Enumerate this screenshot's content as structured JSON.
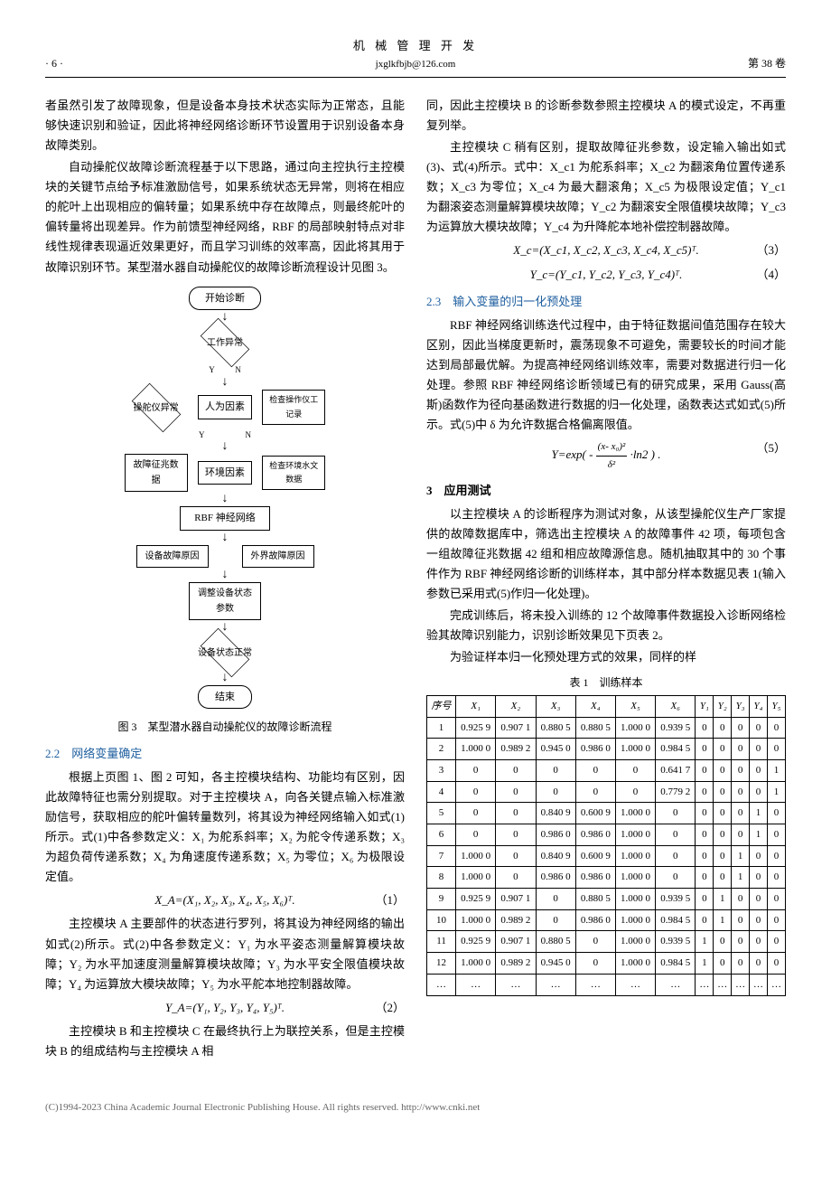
{
  "header": {
    "page_num": "· 6 ·",
    "journal": "机 械 管 理 开 发",
    "email": "jxglkfbjb@126.com",
    "volume": "第 38 卷"
  },
  "col1": {
    "p1": "者虽然引发了故障现象，但是设备本身技术状态实际为正常态，且能够快速识别和验证，因此将神经网络诊断环节设置用于识别设备本身故障类别。",
    "p2": "自动操舵仪故障诊断流程基于以下思路，通过向主控执行主控模块的关键节点给予标准激励信号，如果系统状态无异常，则将在相应的舵叶上出现相应的偏转量；如果系统中存在故障点，则最终舵叶的偏转量将出现差异。作为前馈型神经网络，RBF 的局部映射特点对非线性规律表现逼近效果更好，而且学习训练的效率高，因此将其用于故障识别环节。某型潜水器自动操舵仪的故障诊断流程设计见图 3。",
    "fig3_caption": "图 3　某型潜水器自动操舵仪的故障诊断流程",
    "sec22": "2.2　网络变量确定",
    "p3": "根据上页图 1、图 2 可知，各主控模块结构、功能均有区别，因此故障特征也需分别提取。对于主控模块 A，向各关键点输入标准激励信号，获取相应的舵叶偏转量数列，将其设为神经网络输入如式(1)所示。式(1)中各参数定义：X₁ 为舵系斜率；X₂ 为舵令传递系数；X₃ 为超负荷传递系数；X₄ 为角速度传递系数；X₅ 为零位；X₆ 为极限设定值。",
    "eq1": "X_A=(X₁, X₂, X₃, X₄, X₅, X₆)ᵀ.",
    "eq1_num": "（1）",
    "p4": "主控模块 A 主要部件的状态进行罗列，将其设为神经网络的输出如式(2)所示。式(2)中各参数定义：Y₁ 为水平姿态测量解算模块故障；Y₂ 为水平加速度测量解算模块故障；Y₃ 为水平安全限值模块故障；Y₄ 为运算放大模块故障；Y₅ 为水平舵本地控制器故障。",
    "eq2": "Y_A=(Y₁, Y₂, Y₃, Y₄, Y₅)ᵀ.",
    "eq2_num": "（2）",
    "p5": "主控模块 B 和主控模块 C 在最终执行上为联控关系，但是主控模块 B 的组成结构与主控模块 A 相"
  },
  "flowchart": {
    "start": "开始诊断",
    "d1": "工作异常",
    "d2": "操舵仪异常",
    "b1": "人为因素",
    "b2": "检查操作仪工记录",
    "b3": "故障征兆数据",
    "b4": "环境因素",
    "b5": "检查环境水文数据",
    "b6": "RBF 神经网络",
    "b7": "设备故障原因",
    "b8": "外界故障原因",
    "b9": "调整设备状态参数",
    "d3": "设备状态正常",
    "end": "结束",
    "yes": "Y",
    "no": "N"
  },
  "col2": {
    "p1": "同，因此主控模块 B 的诊断参数参照主控模块 A 的模式设定，不再重复列举。",
    "p2": "主控模块 C 稍有区别，提取故障征兆参数，设定输入输出如式(3)、式(4)所示。式中：X_c1 为舵系斜率；X_c2 为翻滚角位置传递系数；X_c3 为零位；X_c4 为最大翻滚角；X_c5 为极限设定值；Y_c1 为翻滚姿态测量解算模块故障；Y_c2 为翻滚安全限值模块故障；Y_c3 为运算放大模块故障；Y_c4 为升降舵本地补偿控制器故障。",
    "eq3": "X_c=(X_c1, X_c2, X_c3, X_c4, X_c5)ᵀ.",
    "eq3_num": "（3）",
    "eq4": "Y_c=(Y_c1, Y_c2, Y_c3, Y_c4)ᵀ.",
    "eq4_num": "（4）",
    "sec23": "2.3　输入变量的归一化预处理",
    "p3": "RBF 神经网络训练迭代过程中，由于特征数据间值范围存在较大区别，因此当梯度更新时，震荡现象不可避免，需要较长的时间才能达到局部最优解。为提高神经网络训练效率，需要对数据进行归一化处理。参照 RBF 神经网络诊断领域已有的研究成果，采用 Gauss(高斯)函数作为径向基函数进行数据的归一化处理，函数表达式如式(5)所示。式(5)中 δ 为允许数据合格偏离限值。",
    "eq5_pre": "Y=exp( -",
    "eq5_num_frac_top": "(x- x₀)²",
    "eq5_num_frac_bot": "δ²",
    "eq5_post": "·ln2 ) .",
    "eq5_num": "（5）",
    "sec3": "3　应用测试",
    "p4": "以主控模块 A 的诊断程序为测试对象，从该型操舵仪生产厂家提供的故障数据库中，筛选出主控模块 A 的故障事件 42 项，每项包含一组故障征兆数据 42 组和相应故障源信息。随机抽取其中的 30 个事件作为 RBF 神经网络诊断的训练样本，其中部分样本数据见表 1(输入参数已采用式(5)作归一化处理)。",
    "p5": "完成训练后，将未投入训练的 12 个故障事件数据投入诊断网络检验其故障识别能力，识别诊断效果见下页表 2。",
    "p6": "为验证样本归一化预处理方式的效果，同样的样",
    "table1_caption": "表 1　训练样本"
  },
  "table1": {
    "headers": [
      "序号",
      "X₁",
      "X₂",
      "X₃",
      "X₄",
      "X₅",
      "X₆",
      "Y₁",
      "Y₂",
      "Y₃",
      "Y₄",
      "Y₅"
    ],
    "rows": [
      [
        "1",
        "0.925 9",
        "0.907 1",
        "0.880 5",
        "0.880 5",
        "1.000 0",
        "0.939 5",
        "0",
        "0",
        "0",
        "0",
        "0"
      ],
      [
        "2",
        "1.000 0",
        "0.989 2",
        "0.945 0",
        "0.986 0",
        "1.000 0",
        "0.984 5",
        "0",
        "0",
        "0",
        "0",
        "0"
      ],
      [
        "3",
        "0",
        "0",
        "0",
        "0",
        "0",
        "0.641 7",
        "0",
        "0",
        "0",
        "0",
        "1"
      ],
      [
        "4",
        "0",
        "0",
        "0",
        "0",
        "0",
        "0.779 2",
        "0",
        "0",
        "0",
        "0",
        "1"
      ],
      [
        "5",
        "0",
        "0",
        "0.840 9",
        "0.600 9",
        "1.000 0",
        "0",
        "0",
        "0",
        "0",
        "1",
        "0"
      ],
      [
        "6",
        "0",
        "0",
        "0.986 0",
        "0.986 0",
        "1.000 0",
        "0",
        "0",
        "0",
        "0",
        "1",
        "0"
      ],
      [
        "7",
        "1.000 0",
        "0",
        "0.840 9",
        "0.600 9",
        "1.000 0",
        "0",
        "0",
        "0",
        "1",
        "0",
        "0"
      ],
      [
        "8",
        "1.000 0",
        "0",
        "0.986 0",
        "0.986 0",
        "1.000 0",
        "0",
        "0",
        "0",
        "1",
        "0",
        "0"
      ],
      [
        "9",
        "0.925 9",
        "0.907 1",
        "0",
        "0.880 5",
        "1.000 0",
        "0.939 5",
        "0",
        "1",
        "0",
        "0",
        "0"
      ],
      [
        "10",
        "1.000 0",
        "0.989 2",
        "0",
        "0.986 0",
        "1.000 0",
        "0.984 5",
        "0",
        "1",
        "0",
        "0",
        "0"
      ],
      [
        "11",
        "0.925 9",
        "0.907 1",
        "0.880 5",
        "0",
        "1.000 0",
        "0.939 5",
        "1",
        "0",
        "0",
        "0",
        "0"
      ],
      [
        "12",
        "1.000 0",
        "0.989 2",
        "0.945 0",
        "0",
        "1.000 0",
        "0.984 5",
        "1",
        "0",
        "0",
        "0",
        "0"
      ],
      [
        "…",
        "…",
        "…",
        "…",
        "…",
        "…",
        "…",
        "…",
        "…",
        "…",
        "…",
        "…"
      ]
    ]
  },
  "footer": "(C)1994-2023 China Academic Journal Electronic Publishing House. All rights reserved.    http://www.cnki.net"
}
